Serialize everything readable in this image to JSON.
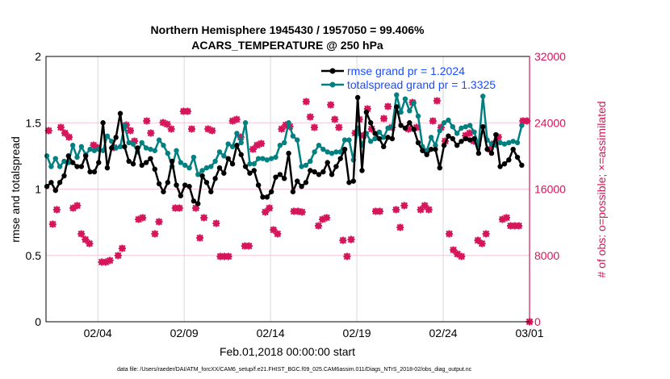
{
  "chart_data": {
    "type": "line",
    "title": [
      "Northern Hemisphere 1945430 / 1957050 = 99.406%",
      "ACARS_TEMPERATURE @ 250 hPa"
    ],
    "xlabel": "Feb.01,2018 00:00:00 start",
    "ylabel": "rmse and totalspread",
    "ylabel_right": "# of obs: o=possible; ×=assimilated",
    "footer": "data file: /Users/raeder/DAI/ATM_forcXX/CAM6_setup/f.e21.FHIST_BGC.f09_025.CAM6assim.011/Diags_NTrS_2018-02/obs_diag_output.nc",
    "xlim_days": [
      0,
      28
    ],
    "x_ticks": [
      {
        "day": 3,
        "label": "02/04"
      },
      {
        "day": 8,
        "label": "02/09"
      },
      {
        "day": 13,
        "label": "02/14"
      },
      {
        "day": 18,
        "label": "02/19"
      },
      {
        "day": 23,
        "label": "02/24"
      },
      {
        "day": 28,
        "label": "03/01"
      }
    ],
    "ylim": [
      0,
      2
    ],
    "y_ticks": [
      "0",
      "0.5",
      "1",
      "1.5",
      "2"
    ],
    "ylim_right": [
      0,
      32000
    ],
    "y_ticks_right": [
      "0",
      "8000",
      "16000",
      "24000",
      "32000"
    ],
    "grid": "on",
    "legend_position": "top-right",
    "colors": {
      "rmse": "#000000",
      "totalspread": "#008080",
      "obs": "#d6155a",
      "legend_text": "#1a4cff",
      "grid_h": "#f4c6d6",
      "grid_v": "#d8d8d8"
    },
    "time_step_days": 0.25,
    "time_start_day": 0.05,
    "series": [
      {
        "name": "rmse",
        "legend": "rmse grand pr = 1.2024",
        "values": [
          1.02,
          1.05,
          0.99,
          1.05,
          1.1,
          1.25,
          1.2,
          1.17,
          1.17,
          1.25,
          1.13,
          1.13,
          1.2,
          1.5,
          1.16,
          1.31,
          1.39,
          1.57,
          1.32,
          1.21,
          1.19,
          1.31,
          1.18,
          1.2,
          1.23,
          1.15,
          1.04,
          0.98,
          1.05,
          1.21,
          1.03,
          0.95,
          1.03,
          1.02,
          0.91,
          0.89,
          1.1,
          1.05,
          0.98,
          1.08,
          1.16,
          1.12,
          1.23,
          1.19,
          1.33,
          1.26,
          1.17,
          1.12,
          1.14,
          1.03,
          0.94,
          0.94,
          0.98,
          1.09,
          1.11,
          1.08,
          1.27,
          0.98,
          1.06,
          1.02,
          1.05,
          1.14,
          1.13,
          1.11,
          1.13,
          1.2,
          1.11,
          1.17,
          1.23,
          1.3,
          1.05,
          1.06,
          1.69,
          1.14,
          1.58,
          1.5,
          1.42,
          1.38,
          1.32,
          1.39,
          1.38,
          1.62,
          1.48,
          1.46,
          1.5,
          1.45,
          1.35,
          1.29,
          1.26,
          1.3,
          1.3,
          1.16,
          1.33,
          1.4,
          1.38,
          1.33,
          1.36,
          1.38,
          1.37,
          1.38,
          1.27,
          1.47,
          1.3,
          1.27,
          1.41,
          1.17,
          1.19,
          1.22,
          1.3,
          1.24,
          1.18
        ]
      },
      {
        "name": "totalspread",
        "legend": "totalspread grand pr = 1.3325",
        "values": [
          1.25,
          1.17,
          1.23,
          1.17,
          1.21,
          1.2,
          1.33,
          1.24,
          1.32,
          1.26,
          1.3,
          1.29,
          1.3,
          1.29,
          1.4,
          1.36,
          1.31,
          1.32,
          1.48,
          1.35,
          1.34,
          1.28,
          1.35,
          1.31,
          1.3,
          1.29,
          1.37,
          1.33,
          1.27,
          1.17,
          1.29,
          1.2,
          1.18,
          1.16,
          1.24,
          1.11,
          1.14,
          1.16,
          1.17,
          1.21,
          1.28,
          1.25,
          1.34,
          1.32,
          1.42,
          1.35,
          1.5,
          1.19,
          1.19,
          1.23,
          1.23,
          1.22,
          1.23,
          1.24,
          1.33,
          1.35,
          1.5,
          1.4,
          1.37,
          1.17,
          1.18,
          1.21,
          1.28,
          1.33,
          1.3,
          1.28,
          1.27,
          1.28,
          1.28,
          1.37,
          1.37,
          1.22,
          1.46,
          1.33,
          1.42,
          1.36,
          1.38,
          1.43,
          1.39,
          1.46,
          1.47,
          1.71,
          1.58,
          1.68,
          1.59,
          1.65,
          1.55,
          1.32,
          1.29,
          1.39,
          1.33,
          1.44,
          1.5,
          1.52,
          1.47,
          1.42,
          1.46,
          1.47,
          1.48,
          1.43,
          1.33,
          1.7,
          1.37,
          1.34,
          1.33,
          1.35,
          1.34,
          1.35,
          1.36,
          1.35,
          1.48
        ]
      }
    ],
    "obs_possible": {
      "x_range_days": [
        0.15,
        27.85
      ],
      "values": [
        23050,
        11770,
        13520,
        23440,
        22760,
        22270,
        13710,
        14010,
        10600,
        9920,
        9430,
        21300,
        21010,
        7200,
        7200,
        7390,
        21010,
        7980,
        8850,
        23730,
        23050,
        21790,
        12350,
        12550,
        24220,
        22760,
        10600,
        12060,
        24020,
        23830,
        23250,
        13710,
        13710,
        25380,
        25380,
        23250,
        13710,
        10110,
        12550,
        23250,
        23050,
        11870,
        7880,
        7880,
        7880,
        24220,
        24410,
        22270,
        9140,
        9140,
        20810,
        21300,
        21490,
        13230,
        13710,
        11090,
        10600,
        23250,
        23730,
        23540,
        13320,
        13320,
        13230,
        26550,
        24700,
        23440,
        11570,
        12350,
        12550,
        26160,
        24410,
        23440,
        9820,
        7880,
        9920,
        22760,
        24410,
        22470,
        25680,
        23250,
        13320,
        13320,
        24510,
        25970,
        23440,
        13520,
        11380,
        14010,
        23250,
        26450,
        23440,
        13520,
        14010,
        13520,
        24220,
        26650,
        23440,
        21790,
        10600,
        8660,
        8170,
        7880,
        22470,
        22760,
        21790,
        9820,
        9430,
        10600,
        20810,
        21490,
        22270,
        12350,
        12550,
        11570,
        11570,
        11570,
        24220,
        24220
      ],
      "final_point": {
        "day": 28,
        "value": 0
      }
    }
  }
}
